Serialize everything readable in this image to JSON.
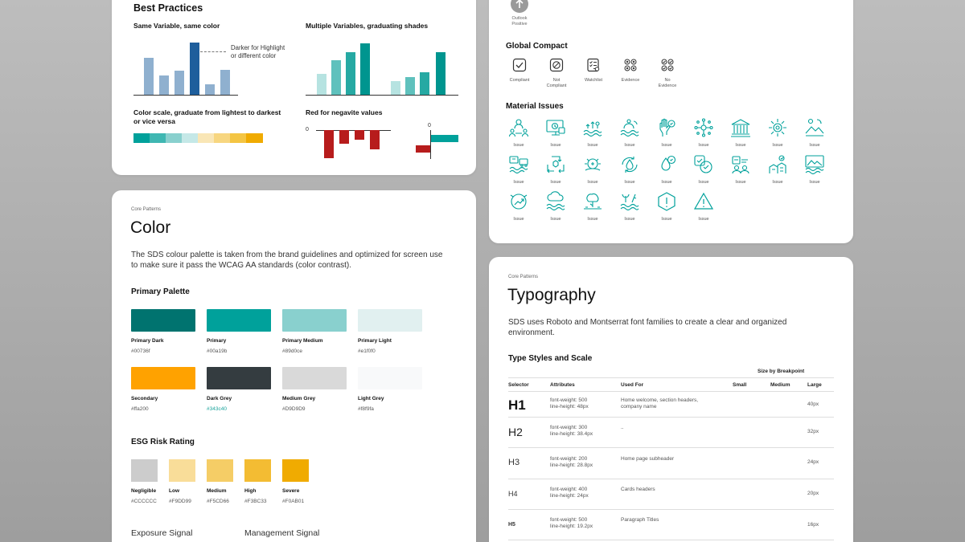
{
  "best_practices": {
    "title": "Best Practices",
    "same_variable": "Same Variable, same color",
    "highlight_note_1": "Darker for Highlight",
    "highlight_note_2": "or different color",
    "multiple_variables": "Multiple Variables, graduating shades",
    "color_scale_1": "Color scale, graduate from lightest to darkest",
    "color_scale_2": "or vice versa",
    "red_negative": "Red for negavite values",
    "zero_label": "0",
    "colors": {
      "bar_light": "#8fb0cf",
      "bar_dark": "#1e5e9c",
      "red": "#b71c1c"
    }
  },
  "color_card": {
    "kicker": "Core Patterns",
    "title": "Color",
    "description_1": "The SDS colour palette is taken from the brand guidelines and optimized for screen use",
    "description_2": "to make sure it pass the WCAG AA standards (color contrast).",
    "primary_heading": "Primary Palette",
    "primary": [
      {
        "name": "Primary Dark",
        "hex": "#00736f",
        "color": "#00736f"
      },
      {
        "name": "Primary",
        "hex": "#00a19b",
        "color": "#00a19b"
      },
      {
        "name": "Primary Medium",
        "hex": "#89d0ce",
        "color": "#89d0ce"
      },
      {
        "name": "Primary Light",
        "hex": "#e1f0f0",
        "color": "#e1f0f0"
      },
      {
        "name": "Secondary",
        "hex": "#ffa200",
        "color": "#ffa200"
      },
      {
        "name": "Dark Grey",
        "hex": "#343c40",
        "color": "#343c40"
      },
      {
        "name": "Medium Grey",
        "hex": "#D9D9D9",
        "color": "#D9D9D9"
      },
      {
        "name": "Light Grey",
        "hex": "#f8f9fa",
        "color": "#f8f9fa"
      }
    ],
    "esg_heading": "ESG Risk Rating",
    "esg": [
      {
        "name": "Negligible",
        "hex": "#CCCCCC",
        "color": "#CCCCCC"
      },
      {
        "name": "Low",
        "hex": "#F9DD99",
        "color": "#F9DD99"
      },
      {
        "name": "Medium",
        "hex": "#F5CD66",
        "color": "#F5CD66"
      },
      {
        "name": "High",
        "hex": "#F3BC33",
        "color": "#F3BC33"
      },
      {
        "name": "Severe",
        "hex": "#F0AB01",
        "color": "#F0AB01"
      }
    ],
    "exposure_signal": "Exposure Signal",
    "management_signal": "Management Signal"
  },
  "icons_card": {
    "outlook_label_1": "Outlook",
    "outlook_label_2": "Positive",
    "global_compact_heading": "Global Compact",
    "global_compact": [
      {
        "label_1": "Compliant",
        "label_2": ""
      },
      {
        "label_1": "Not",
        "label_2": "Compliant"
      },
      {
        "label_1": "Watchlist",
        "label_2": ""
      },
      {
        "label_1": "Evidence",
        "label_2": ""
      },
      {
        "label_1": "No",
        "label_2": "Evidence"
      }
    ],
    "material_issues_heading": "Material Issues",
    "issue_label": "Issue",
    "icon_color": "#00a19b"
  },
  "typography": {
    "kicker": "Core Patterns",
    "title": "Typography",
    "description_1": "SDS uses Roboto and Montserrat font families to create a clear and organized",
    "description_2": "environment.",
    "type_heading": "Type Styles and Scale",
    "size_by_breakpoint": "Size by Breakpoint",
    "columns": {
      "selector": "Selector",
      "attributes": "Attributes",
      "used_for": "Used For",
      "small": "Small",
      "medium": "Medium",
      "large": "Large"
    },
    "rows": [
      {
        "selector": "H1",
        "attr_1": "font-weight: 500",
        "attr_2": "line-height: 48px",
        "used_1": "Home welcome, section headers,",
        "used_2": "company name",
        "large": "40px"
      },
      {
        "selector": "H2",
        "attr_1": "font-weight: 300",
        "attr_2": "line-height: 38.4px",
        "used_1": "..",
        "used_2": "",
        "large": "32px"
      },
      {
        "selector": "H3",
        "attr_1": "font-weight: 200",
        "attr_2": "line-height: 28.8px",
        "used_1": "Home page subheader",
        "used_2": "",
        "large": "24px"
      },
      {
        "selector": "H4",
        "attr_1": "font-weight: 400",
        "attr_2": "line-height: 24px",
        "used_1": "Cards headers",
        "used_2": "",
        "large": "20px"
      },
      {
        "selector": "H5",
        "attr_1": "font-weight: 500",
        "attr_2": "line-height: 19.2px",
        "used_1": "Paragraph Titles",
        "used_2": "",
        "large": "16px"
      }
    ]
  }
}
